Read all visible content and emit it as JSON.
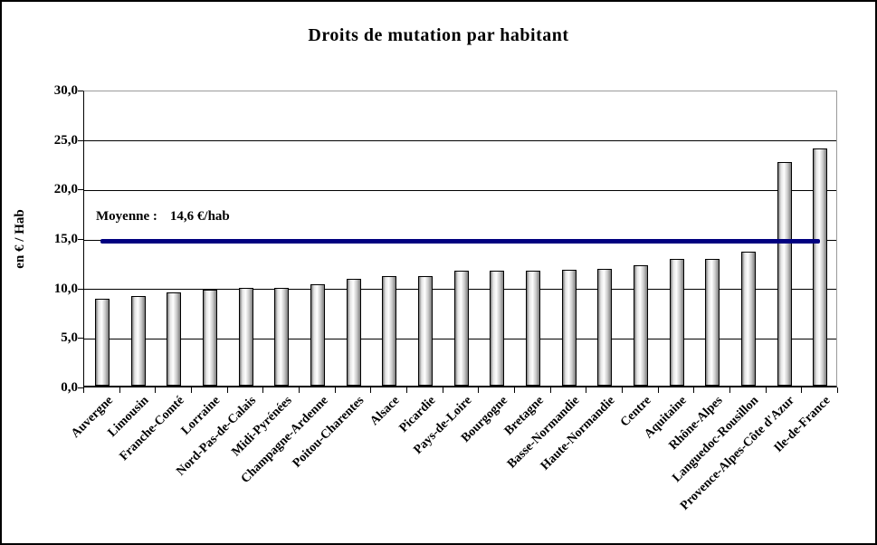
{
  "chart_data": {
    "type": "bar",
    "title": "Droits de mutation par habitant",
    "xlabel": "",
    "ylabel": "en € / Hab",
    "ylim": [
      0,
      30
    ],
    "grid": true,
    "legend": "none",
    "ytick_labels": [
      "0,0",
      "5,0",
      "10,0",
      "15,0",
      "20,0",
      "25,0",
      "30,0"
    ],
    "yticks": [
      0,
      5,
      10,
      15,
      20,
      25,
      30
    ],
    "categories": [
      "Auvergne",
      "Limousin",
      "Franche-Comté",
      "Lorraine",
      "Nord-Pas-de-Calais",
      "Midi-Pyrénées",
      "Champagne-Ardenne",
      "Poitou-Charentes",
      "Alsace",
      "Picardie",
      "Pays-de-Loire",
      "Bourgogne",
      "Bretagne",
      "Basse-Normandie",
      "Haute-Normandie",
      "Centre",
      "Aquitaine",
      "Rhône-Alpes",
      "Languedoc-Rousillon",
      "Provence-Alpes-Côte d'Azur",
      "Ile-de-France"
    ],
    "values": [
      8.8,
      9.1,
      9.4,
      9.7,
      9.9,
      9.9,
      10.2,
      10.8,
      11.1,
      11.1,
      11.6,
      11.6,
      11.6,
      11.7,
      11.8,
      12.2,
      12.8,
      12.8,
      13.5,
      22.6,
      24.0
    ],
    "average_line": {
      "value": 14.6,
      "label_prefix": "Moyenne :",
      "label_value": "14,6 €/hab",
      "color": "#000080"
    },
    "bar_gradient_stops": [
      "#787878 0%",
      "#e2e2e2 20%",
      "#ffffff 45%",
      "#cccccc 72%",
      "#7e7e7e 100%"
    ],
    "gridline_color": "#000000",
    "plot_border_color": "#9a9a9a"
  }
}
